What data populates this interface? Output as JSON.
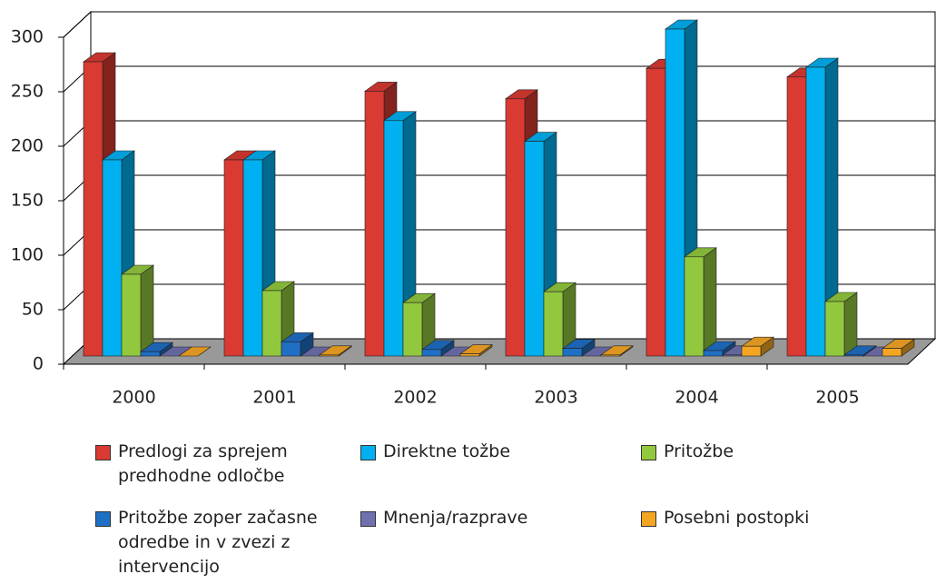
{
  "chart_data": {
    "type": "bar3d",
    "categories": [
      "2000",
      "2001",
      "2002",
      "2003",
      "2004",
      "2005"
    ],
    "series": [
      {
        "name": "Predlogi za sprejem predhodne odločbe",
        "color": "#d93a32",
        "values": [
          270,
          180,
          243,
          236,
          264,
          256
        ]
      },
      {
        "name": "Direktne tožbe",
        "color": "#00b0f0",
        "values": [
          180,
          180,
          216,
          197,
          300,
          265
        ]
      },
      {
        "name": "Pritožbe",
        "color": "#92c83e",
        "values": [
          75,
          60,
          49,
          59,
          91,
          50
        ]
      },
      {
        "name": "Pritožbe zoper začasne odredbe in v zvezi z intervencijo",
        "color": "#1f6fc5",
        "values": [
          4,
          13,
          6,
          7,
          5,
          1
        ]
      },
      {
        "name": "Mnenja/razprave",
        "color": "#7070b0",
        "values": [
          0,
          0,
          0,
          0,
          1,
          0
        ]
      },
      {
        "name": "Posebni postopki",
        "color": "#f4a623",
        "values": [
          0,
          1,
          2,
          1,
          9,
          7
        ]
      }
    ],
    "ylim": [
      0,
      300
    ],
    "yticks": [
      0,
      50,
      100,
      150,
      200,
      250,
      300
    ],
    "grid": true
  }
}
